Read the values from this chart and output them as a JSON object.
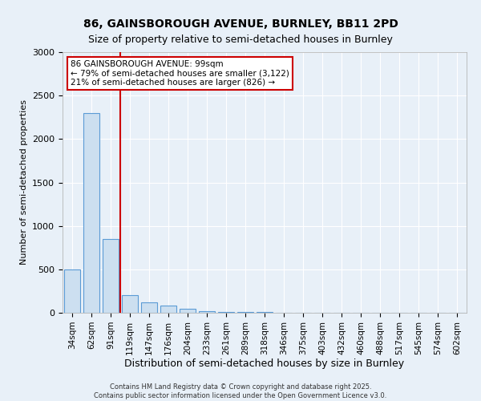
{
  "title1": "86, GAINSBOROUGH AVENUE, BURNLEY, BB11 2PD",
  "title2": "Size of property relative to semi-detached houses in Burnley",
  "xlabel": "Distribution of semi-detached houses by size in Burnley",
  "ylabel": "Number of semi-detached properties",
  "categories": [
    "34sqm",
    "62sqm",
    "91sqm",
    "119sqm",
    "147sqm",
    "176sqm",
    "204sqm",
    "233sqm",
    "261sqm",
    "289sqm",
    "318sqm",
    "346sqm",
    "375sqm",
    "403sqm",
    "432sqm",
    "460sqm",
    "488sqm",
    "517sqm",
    "545sqm",
    "574sqm",
    "602sqm"
  ],
  "values": [
    500,
    2300,
    850,
    200,
    120,
    80,
    50,
    20,
    10,
    5,
    5,
    0,
    0,
    0,
    0,
    0,
    0,
    0,
    0,
    0,
    0
  ],
  "bar_color": "#ccdff0",
  "bar_edge_color": "#5b9bd5",
  "background_color": "#e8f0f8",
  "red_line_x": 2.5,
  "annotation_title": "86 GAINSBOROUGH AVENUE: 99sqm",
  "annotation_line1": "← 79% of semi-detached houses are smaller (3,122)",
  "annotation_line2": "21% of semi-detached houses are larger (826) →",
  "annotation_box_color": "#ffffff",
  "annotation_box_edge": "#cc0000",
  "red_line_color": "#cc0000",
  "ylim": [
    0,
    3000
  ],
  "yticks": [
    0,
    500,
    1000,
    1500,
    2000,
    2500,
    3000
  ],
  "footer_line1": "Contains HM Land Registry data © Crown copyright and database right 2025.",
  "footer_line2": "Contains public sector information licensed under the Open Government Licence v3.0."
}
